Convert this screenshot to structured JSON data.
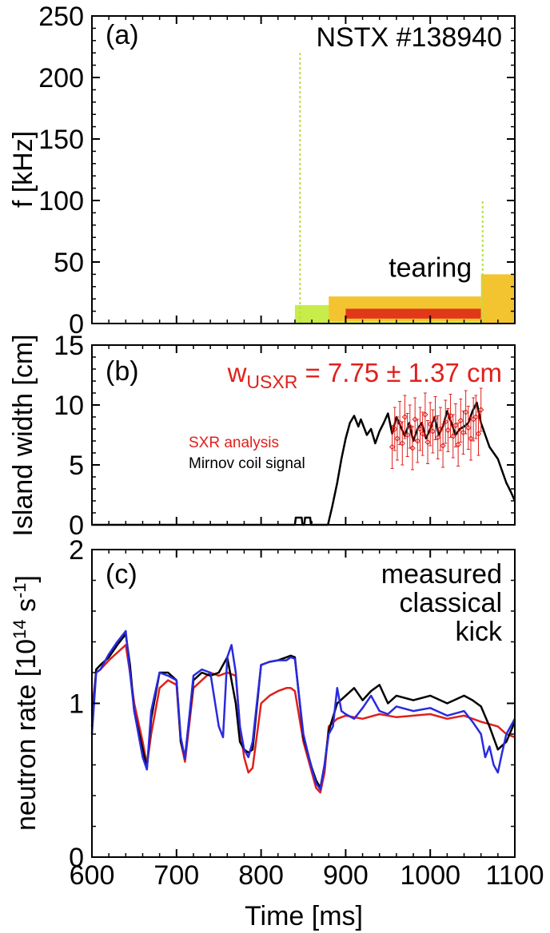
{
  "chart_data": [
    {
      "panel": "(a)",
      "type": "heatmap",
      "title": "NSTX #138940",
      "ylabel": "f [kHz]",
      "xlim": [
        600,
        1100
      ],
      "ylim": [
        0,
        250
      ],
      "yticks": [
        "0",
        "50",
        "100",
        "150",
        "200",
        "250"
      ],
      "annotations": [
        {
          "text": "tearing",
          "x": 1000,
          "y": 38
        }
      ],
      "bands": [
        {
          "x0": 840,
          "x1": 1100,
          "f0": 0,
          "f1": 15,
          "level": "low"
        },
        {
          "x0": 880,
          "x1": 1060,
          "f0": 2,
          "f1": 22,
          "level": "mid"
        },
        {
          "x0": 900,
          "x1": 1060,
          "f0": 4,
          "f1": 12,
          "level": "high"
        },
        {
          "x0": 1060,
          "x1": 1100,
          "f0": 0,
          "f1": 40,
          "level": "mid"
        }
      ],
      "spikes": [
        {
          "x": 846,
          "f0": 0,
          "f1": 220
        },
        {
          "x": 1062,
          "f0": 0,
          "f1": 100
        }
      ]
    },
    {
      "panel": "(b)",
      "type": "line",
      "ylabel": "Island width [cm]",
      "xlim": [
        600,
        1100
      ],
      "ylim": [
        0,
        15
      ],
      "yticks": [
        "0",
        "5",
        "10",
        "15"
      ],
      "annotation": {
        "main": "w",
        "sub": "USXR",
        "rest": " = 7.75 ± 1.37 cm"
      },
      "legend": [
        {
          "label": "SXR analysis",
          "color": "#e0201c"
        },
        {
          "label": "Mirnov coil signal",
          "color": "#000000"
        }
      ],
      "series": [
        {
          "name": "Mirnov coil signal",
          "color": "#000000",
          "x": [
            600,
            840,
            841,
            842,
            848,
            849,
            851,
            852,
            858,
            859,
            860,
            879,
            884,
            890,
            895,
            900,
            905,
            910,
            915,
            918,
            925,
            930,
            935,
            940,
            945,
            950,
            955,
            960,
            965,
            970,
            975,
            980,
            985,
            990,
            995,
            1000,
            1005,
            1010,
            1015,
            1020,
            1025,
            1030,
            1035,
            1040,
            1045,
            1050,
            1055,
            1060,
            1065,
            1070,
            1075,
            1080,
            1085,
            1090,
            1095,
            1100
          ],
          "y": [
            0,
            0,
            0.6,
            0.6,
            0.6,
            0,
            0,
            0.6,
            0.6,
            0,
            0,
            0,
            1.5,
            3.5,
            5.5,
            7.2,
            8.5,
            9.1,
            8.2,
            8.8,
            7.5,
            8.0,
            6.8,
            7.8,
            8.5,
            9.3,
            7.6,
            9.0,
            8.2,
            7.4,
            8.5,
            7.0,
            8.0,
            8.5,
            7.2,
            8.0,
            9.0,
            7.5,
            8.2,
            9.5,
            8.5,
            7.5,
            8.0,
            8.2,
            8.5,
            9.5,
            10.2,
            8.5,
            7.5,
            6.5,
            6.0,
            5.5,
            4.5,
            3.5,
            2.8,
            2.0
          ]
        },
        {
          "name": "SXR analysis",
          "color": "#e0201c",
          "x": [
            955,
            958,
            961,
            964,
            967,
            970,
            973,
            976,
            979,
            982,
            985,
            988,
            991,
            994,
            997,
            1000,
            1003,
            1006,
            1009,
            1012,
            1015,
            1018,
            1021,
            1024,
            1027,
            1030,
            1033,
            1036,
            1039,
            1042,
            1045,
            1048,
            1051,
            1054,
            1057,
            1060
          ],
          "y": [
            6.5,
            8.0,
            7.2,
            8.5,
            6.8,
            9.0,
            7.5,
            8.2,
            6.4,
            8.8,
            7.0,
            8.0,
            7.6,
            9.2,
            6.9,
            8.4,
            7.8,
            8.9,
            7.3,
            8.0,
            6.6,
            8.6,
            7.9,
            9.1,
            7.4,
            8.3,
            6.7,
            8.7,
            7.7,
            9.4,
            8.1,
            7.2,
            8.8,
            9.0,
            7.6,
            9.6
          ],
          "err": 1.8
        }
      ]
    },
    {
      "panel": "(c)",
      "type": "line",
      "ylabel": "neutron rate [10^14 s^-1]",
      "xlabel": "Time [ms]",
      "xlim": [
        600,
        1100
      ],
      "ylim": [
        0,
        2
      ],
      "xticks": [
        "600",
        "700",
        "800",
        "900",
        "1000",
        "1100"
      ],
      "yticks": [
        "0",
        "1",
        "2"
      ],
      "legend": [
        {
          "label": "measured",
          "color": "#e0201c"
        },
        {
          "label": "classical",
          "color": "#000000"
        },
        {
          "label": "kick",
          "color": "#2a2ae0"
        }
      ],
      "series": [
        {
          "name": "measured",
          "color": "#e0201c",
          "x": [
            600,
            605,
            610,
            620,
            630,
            640,
            645,
            650,
            660,
            665,
            670,
            680,
            690,
            700,
            705,
            710,
            720,
            730,
            740,
            750,
            760,
            770,
            775,
            780,
            785,
            790,
            800,
            810,
            820,
            830,
            835,
            840,
            850,
            860,
            865,
            870,
            875,
            880,
            890,
            900,
            920,
            940,
            960,
            980,
            1000,
            1020,
            1040,
            1060,
            1080,
            1090,
            1100
          ],
          "y": [
            0.95,
            1.2,
            1.22,
            1.28,
            1.33,
            1.38,
            1.2,
            1.0,
            0.75,
            0.6,
            0.8,
            1.1,
            1.15,
            1.12,
            0.75,
            0.62,
            1.1,
            1.15,
            1.2,
            1.18,
            1.2,
            1.18,
            0.85,
            0.65,
            0.55,
            0.58,
            1.0,
            1.05,
            1.08,
            1.1,
            1.1,
            1.08,
            0.75,
            0.55,
            0.45,
            0.42,
            0.55,
            0.85,
            0.9,
            0.92,
            0.9,
            0.93,
            0.91,
            0.92,
            0.93,
            0.9,
            0.92,
            0.88,
            0.85,
            0.8,
            0.78
          ]
        },
        {
          "name": "classical",
          "color": "#000000",
          "x": [
            600,
            605,
            610,
            620,
            630,
            640,
            645,
            650,
            660,
            665,
            670,
            680,
            690,
            700,
            705,
            710,
            720,
            730,
            740,
            750,
            760,
            770,
            775,
            780,
            785,
            790,
            800,
            810,
            820,
            830,
            835,
            840,
            850,
            860,
            865,
            870,
            875,
            880,
            890,
            900,
            910,
            920,
            930,
            940,
            950,
            960,
            980,
            1000,
            1020,
            1040,
            1050,
            1060,
            1070,
            1080,
            1090,
            1100
          ],
          "y": [
            0.85,
            1.22,
            1.25,
            1.3,
            1.38,
            1.45,
            1.25,
            0.95,
            0.7,
            0.58,
            0.9,
            1.2,
            1.2,
            1.15,
            0.75,
            0.65,
            1.15,
            1.2,
            1.18,
            1.2,
            1.3,
            1.0,
            0.75,
            0.7,
            0.68,
            0.7,
            1.25,
            1.27,
            1.28,
            1.3,
            1.31,
            1.3,
            0.78,
            0.58,
            0.5,
            0.45,
            0.6,
            0.82,
            1.0,
            1.05,
            1.1,
            1.02,
            1.08,
            1.12,
            1.0,
            1.05,
            1.02,
            1.05,
            1.0,
            1.05,
            1.02,
            0.98,
            0.85,
            0.7,
            0.75,
            0.88
          ]
        },
        {
          "name": "kick",
          "color": "#2a2ae0",
          "x": [
            600,
            605,
            610,
            620,
            630,
            640,
            645,
            650,
            660,
            665,
            670,
            680,
            690,
            700,
            705,
            710,
            720,
            730,
            740,
            750,
            755,
            760,
            765,
            770,
            775,
            780,
            785,
            790,
            800,
            810,
            820,
            830,
            835,
            840,
            850,
            860,
            865,
            870,
            875,
            880,
            885,
            890,
            895,
            900,
            910,
            920,
            930,
            940,
            950,
            960,
            980,
            1000,
            1020,
            1040,
            1050,
            1060,
            1065,
            1070,
            1075,
            1080,
            1085,
            1090,
            1100
          ],
          "y": [
            0.8,
            1.2,
            1.22,
            1.32,
            1.4,
            1.47,
            1.2,
            0.95,
            0.65,
            0.57,
            0.95,
            1.2,
            1.18,
            1.15,
            0.78,
            0.64,
            1.18,
            1.22,
            1.2,
            0.85,
            0.78,
            1.3,
            1.38,
            1.2,
            0.85,
            0.7,
            0.65,
            0.75,
            1.25,
            1.27,
            1.28,
            1.28,
            1.3,
            1.29,
            0.8,
            0.57,
            0.48,
            0.44,
            0.6,
            0.8,
            0.85,
            1.1,
            0.95,
            0.93,
            0.9,
            0.97,
            1.05,
            0.95,
            0.93,
            0.98,
            0.95,
            0.97,
            0.92,
            0.95,
            0.88,
            0.8,
            0.65,
            0.72,
            0.6,
            0.55,
            0.68,
            0.8,
            0.9
          ]
        }
      ]
    }
  ]
}
